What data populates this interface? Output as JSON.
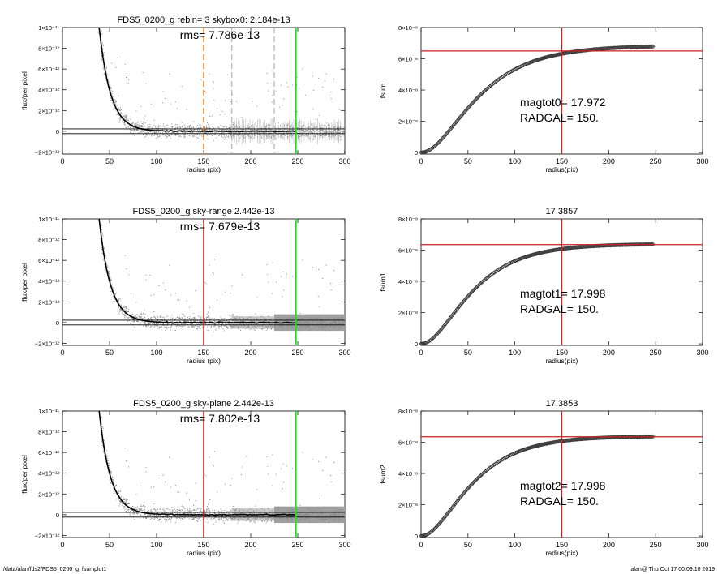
{
  "footer": {
    "left": "/data/alan/fds2/FDS5_0200_g_fsumplot1",
    "right": "alan@  Thu Oct 17 00:09:10 2019"
  },
  "colors": {
    "profile_points": "#888888",
    "profile_fit": "#000000",
    "red_line": "#cc1f1f",
    "green_line": "#22dd22",
    "orange_dash": "#f08020",
    "grey_dash": "#999999",
    "curve": "#333333"
  },
  "chart_data": [
    {
      "id": "profile-1",
      "type": "scatter",
      "title": "FDS5_0200_g rebin= 3   skybox0:  2.184e-13",
      "annotation": "rms= 7.786e-13",
      "xlabel": "radius (pix)",
      "ylabel": "flux/per pixel",
      "xlim": [
        0,
        300
      ],
      "ylim": [
        -2.2e-12,
        1e-11
      ],
      "xticks": [
        0,
        50,
        100,
        150,
        200,
        250,
        300
      ],
      "yticks": [
        {
          "value": 1e-11,
          "label": "1×10⁻¹¹"
        },
        {
          "value": 8e-12,
          "label": "8×10⁻¹²"
        },
        {
          "value": 6e-12,
          "label": "6×10⁻¹²"
        },
        {
          "value": 4e-12,
          "label": "4×10⁻¹²"
        },
        {
          "value": 2e-12,
          "label": "2×10⁻¹²"
        },
        {
          "value": 0,
          "label": "0"
        },
        {
          "value": -2e-12,
          "label": "−2×10⁻¹²"
        }
      ],
      "profile": {
        "amplitude": 3.2e-11,
        "scale": 12,
        "start": 25
      },
      "sky_lines": [
        2.3e-13,
        -2.3e-13
      ],
      "vlines": [
        {
          "x": 150,
          "style": "orange-dash"
        },
        {
          "x": 180,
          "style": "grey-dash"
        },
        {
          "x": 225,
          "style": "grey-dash"
        },
        {
          "x": 248,
          "style": "green"
        }
      ],
      "noise_shade": "errorbars"
    },
    {
      "id": "growth-1",
      "type": "line",
      "title": "",
      "xlabel": "radius(pix)",
      "ylabel": "fsum",
      "xlim": [
        0,
        300
      ],
      "ylim": [
        -1e-09,
        8e-08
      ],
      "xticks": [
        0,
        50,
        100,
        150,
        200,
        250,
        300
      ],
      "yticks": [
        {
          "value": 0,
          "label": "0"
        },
        {
          "value": 2e-08,
          "label": "2×10⁻⁸"
        },
        {
          "value": 4e-08,
          "label": "4×10⁻⁸"
        },
        {
          "value": 6e-08,
          "label": "6×10⁻⁸"
        },
        {
          "value": 8e-08,
          "label": "8×10⁻⁸"
        }
      ],
      "annotation_lines": [
        "magtot0=  17.972",
        "RADGAL=    150."
      ],
      "curve": {
        "asymptote": 6.85e-08,
        "scale": 45,
        "power": 2.6,
        "max_x": 248
      },
      "hline": 6.5e-08,
      "vline": 150
    },
    {
      "id": "profile-2",
      "type": "scatter",
      "title": "FDS5_0200_g sky-range  2.442e-13",
      "annotation": "rms= 7.679e-13",
      "xlabel": "radius (pix)",
      "ylabel": "flux/per pixel",
      "xlim": [
        0,
        300
      ],
      "ylim": [
        -2.2e-12,
        1e-11
      ],
      "xticks": [
        0,
        50,
        100,
        150,
        200,
        250,
        300
      ],
      "yticks": [
        {
          "value": 1e-11,
          "label": "1×10⁻¹¹"
        },
        {
          "value": 8e-12,
          "label": "8×10⁻¹²"
        },
        {
          "value": 6e-12,
          "label": "6×10⁻¹²"
        },
        {
          "value": 4e-12,
          "label": "4×10⁻¹²"
        },
        {
          "value": 2e-12,
          "label": "2×10⁻¹²"
        },
        {
          "value": 0,
          "label": "0"
        },
        {
          "value": -2e-12,
          "label": "−2×10⁻¹²"
        }
      ],
      "profile": {
        "amplitude": 3.2e-11,
        "scale": 12,
        "start": 25
      },
      "sky_lines": [
        2.3e-13,
        -2.3e-13
      ],
      "vlines": [
        {
          "x": 150,
          "style": "red"
        },
        {
          "x": 248,
          "style": "green"
        }
      ],
      "noise_shade": "bands"
    },
    {
      "id": "growth-2",
      "type": "line",
      "title": "17.3857",
      "xlabel": "radius(pix)",
      "ylabel": "fsum1",
      "xlim": [
        0,
        300
      ],
      "ylim": [
        -1e-09,
        8e-08
      ],
      "xticks": [
        0,
        50,
        100,
        150,
        200,
        250,
        300
      ],
      "yticks": [
        {
          "value": 0,
          "label": "0"
        },
        {
          "value": 2e-08,
          "label": "2×10⁻⁸"
        },
        {
          "value": 4e-08,
          "label": "4×10⁻⁸"
        },
        {
          "value": 6e-08,
          "label": "6×10⁻⁸"
        },
        {
          "value": 8e-08,
          "label": "8×10⁻⁸"
        }
      ],
      "annotation_lines": [
        "magtot1=  17.998",
        "RADGAL=    150."
      ],
      "curve": {
        "asymptote": 6.4e-08,
        "scale": 40,
        "power": 2.6,
        "max_x": 248
      },
      "hline": 6.35e-08,
      "vline": 150
    },
    {
      "id": "profile-3",
      "type": "scatter",
      "title": "FDS5_0200_g sky-plane  2.442e-13",
      "annotation": "rms= 7.802e-13",
      "xlabel": "radius (pix)",
      "ylabel": "flux/per pixel",
      "xlim": [
        0,
        300
      ],
      "ylim": [
        -2.2e-12,
        1e-11
      ],
      "xticks": [
        0,
        50,
        100,
        150,
        200,
        250,
        300
      ],
      "yticks": [
        {
          "value": 1e-11,
          "label": "1×10⁻¹¹"
        },
        {
          "value": 8e-12,
          "label": "8×10⁻¹²"
        },
        {
          "value": 6e-12,
          "label": "6×10⁻¹²"
        },
        {
          "value": 4e-12,
          "label": "4×10⁻¹²"
        },
        {
          "value": 2e-12,
          "label": "2×10⁻¹²"
        },
        {
          "value": 0,
          "label": "0"
        },
        {
          "value": -2e-12,
          "label": "−2×10⁻¹²"
        }
      ],
      "profile": {
        "amplitude": 3.2e-11,
        "scale": 12,
        "start": 25
      },
      "sky_lines": [
        2.3e-13,
        -2.3e-13
      ],
      "vlines": [
        {
          "x": 150,
          "style": "red"
        },
        {
          "x": 248,
          "style": "green"
        }
      ],
      "noise_shade": "bands"
    },
    {
      "id": "growth-3",
      "type": "line",
      "title": "17.3853",
      "xlabel": "radius(pix)",
      "ylabel": "fsum2",
      "xlim": [
        0,
        300
      ],
      "ylim": [
        -1e-09,
        8e-08
      ],
      "xticks": [
        0,
        50,
        100,
        150,
        200,
        250,
        300
      ],
      "yticks": [
        {
          "value": 0,
          "label": "0"
        },
        {
          "value": 2e-08,
          "label": "2×10⁻⁸"
        },
        {
          "value": 4e-08,
          "label": "4×10⁻⁸"
        },
        {
          "value": 6e-08,
          "label": "6×10⁻⁸"
        },
        {
          "value": 8e-08,
          "label": "8×10⁻⁸"
        }
      ],
      "annotation_lines": [
        "magtot2=  17.998",
        "RADGAL=    150."
      ],
      "curve": {
        "asymptote": 6.4e-08,
        "scale": 40,
        "power": 2.6,
        "max_x": 248
      },
      "hline": 6.35e-08,
      "vline": 150
    }
  ]
}
